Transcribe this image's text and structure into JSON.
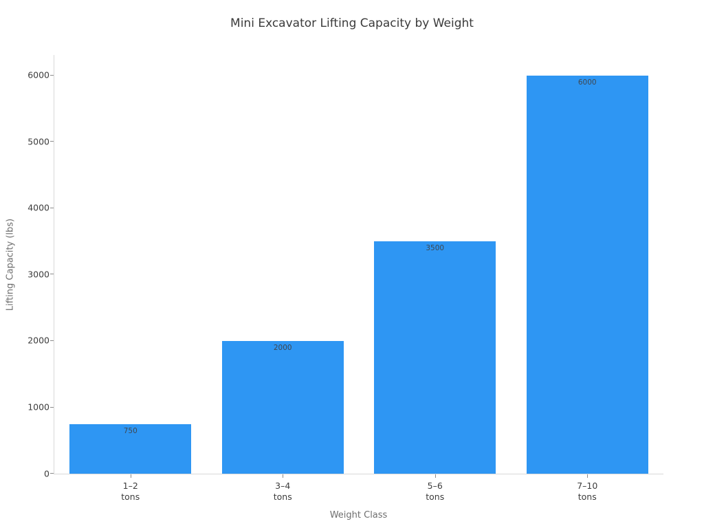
{
  "chart_data": {
    "type": "bar",
    "title": "Mini Excavator Lifting Capacity by Weight",
    "xlabel": "Weight Class",
    "ylabel": "Lifting Capacity (lbs)",
    "categories": [
      {
        "line1": "1–2",
        "line2": "tons"
      },
      {
        "line1": "3–4",
        "line2": "tons"
      },
      {
        "line1": "5–6",
        "line2": "tons"
      },
      {
        "line1": "7–10",
        "line2": "tons"
      }
    ],
    "values": [
      750,
      2000,
      3500,
      6000
    ],
    "value_labels": [
      "750",
      "2000",
      "3500",
      "6000"
    ],
    "yticks": [
      0,
      1000,
      2000,
      3000,
      4000,
      5000,
      6000
    ],
    "ytick_labels": [
      "0",
      "1000",
      "2000",
      "3000",
      "4000",
      "5000",
      "6000"
    ],
    "ylim": [
      0,
      6310
    ],
    "bar_width_fraction": 0.8,
    "grid": false,
    "legend": "none",
    "colors": {
      "bar": "#2e96f3",
      "title_text": "#3a3a3a",
      "tick_text": "#3c3c3c",
      "axis_label_text": "#6e6e6e",
      "bar_label_text": "#3f4750",
      "spine": "#d9d9d9",
      "tick_mark": "#8a8a8a",
      "background": "#ffffff"
    }
  }
}
